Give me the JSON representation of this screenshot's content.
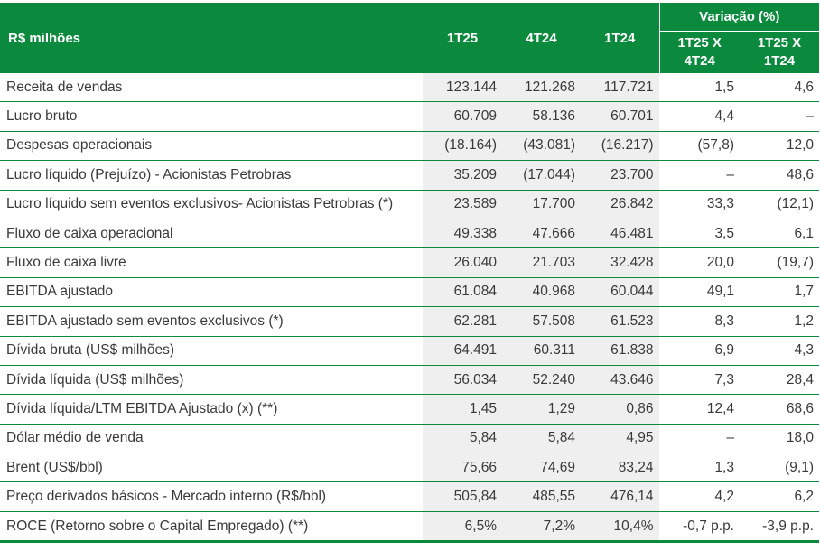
{
  "header": {
    "label": "R$ milhões",
    "periods": [
      "1T25",
      "4T24",
      "1T24"
    ],
    "variation_title": "Variação (%)",
    "variation_cols": [
      "1T25 X\n4T24",
      "1T25 X\n1T24"
    ]
  },
  "rows": [
    {
      "label": "Receita de vendas",
      "v": [
        "123.144",
        "121.268",
        "117.721",
        "1,5",
        "4,6"
      ]
    },
    {
      "label": "Lucro bruto",
      "v": [
        "60.709",
        "58.136",
        "60.701",
        "4,4",
        "–"
      ]
    },
    {
      "label": "Despesas operacionais",
      "v": [
        "(18.164)",
        "(43.081)",
        "(16.217)",
        "(57,8)",
        "12,0"
      ]
    },
    {
      "label": "Lucro líquido (Prejuízo) - Acionistas Petrobras",
      "v": [
        "35.209",
        "(17.044)",
        "23.700",
        "–",
        "48,6"
      ]
    },
    {
      "label": "Lucro líquido sem eventos exclusivos- Acionistas Petrobras (*)",
      "v": [
        "23.589",
        "17.700",
        "26.842",
        "33,3",
        "(12,1)"
      ]
    },
    {
      "label": "Fluxo de caixa operacional",
      "v": [
        "49.338",
        "47.666",
        "46.481",
        "3,5",
        "6,1"
      ]
    },
    {
      "label": "Fluxo de caixa livre",
      "v": [
        "26.040",
        "21.703",
        "32.428",
        "20,0",
        "(19,7)"
      ]
    },
    {
      "label": "EBITDA ajustado",
      "v": [
        "61.084",
        "40.968",
        "60.044",
        "49,1",
        "1,7"
      ]
    },
    {
      "label": "EBITDA ajustado sem eventos exclusivos (*)",
      "v": [
        "62.281",
        "57.508",
        "61.523",
        "8,3",
        "1,2"
      ]
    },
    {
      "label": "Dívida bruta (US$ milhões)",
      "v": [
        "64.491",
        "60.311",
        "61.838",
        "6,9",
        "4,3"
      ]
    },
    {
      "label": "Dívida líquida (US$ milhões)",
      "v": [
        "56.034",
        "52.240",
        "43.646",
        "7,3",
        "28,4"
      ]
    },
    {
      "label": "Dívida líquida/LTM EBITDA Ajustado (x) (**)",
      "v": [
        "1,45",
        "1,29",
        "0,86",
        "12,4",
        "68,6"
      ]
    },
    {
      "label": "Dólar médio de venda",
      "v": [
        "5,84",
        "5,84",
        "4,95",
        "–",
        "18,0"
      ]
    },
    {
      "label": "Brent (US$/bbl)",
      "v": [
        "75,66",
        "74,69",
        "83,24",
        "1,3",
        "(9,1)"
      ]
    },
    {
      "label": "Preço derivados básicos - Mercado interno (R$/bbl)",
      "v": [
        "505,84",
        "485,55",
        "476,14",
        "4,2",
        "6,2"
      ]
    },
    {
      "label": "ROCE (Retorno sobre o Capital Empregado) (**)",
      "v": [
        "6,5%",
        "7,2%",
        "10,4%",
        "-0,7 p.p.",
        "-3,9 p.p."
      ]
    }
  ]
}
